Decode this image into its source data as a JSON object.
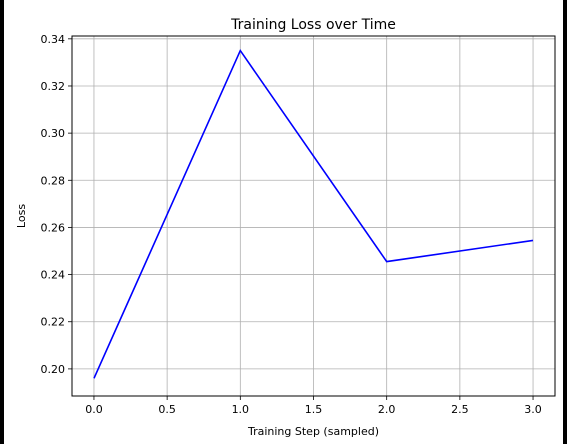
{
  "chart_data": {
    "type": "line",
    "title": "Training Loss over Time",
    "xlabel": "Training Step (sampled)",
    "ylabel": "Loss",
    "xlim": [
      -0.15,
      3.15
    ],
    "ylim": [
      0.1885,
      0.3412
    ],
    "xticks": [
      0.0,
      0.5,
      1.0,
      1.5,
      2.0,
      2.5,
      3.0
    ],
    "yticks": [
      0.2,
      0.22,
      0.24,
      0.26,
      0.28,
      0.3,
      0.32,
      0.34
    ],
    "grid": true,
    "series": [
      {
        "color": "#0000ff",
        "x": [
          0,
          1,
          2,
          3
        ],
        "y": [
          0.196,
          0.335,
          0.2455,
          0.2545
        ]
      }
    ]
  }
}
